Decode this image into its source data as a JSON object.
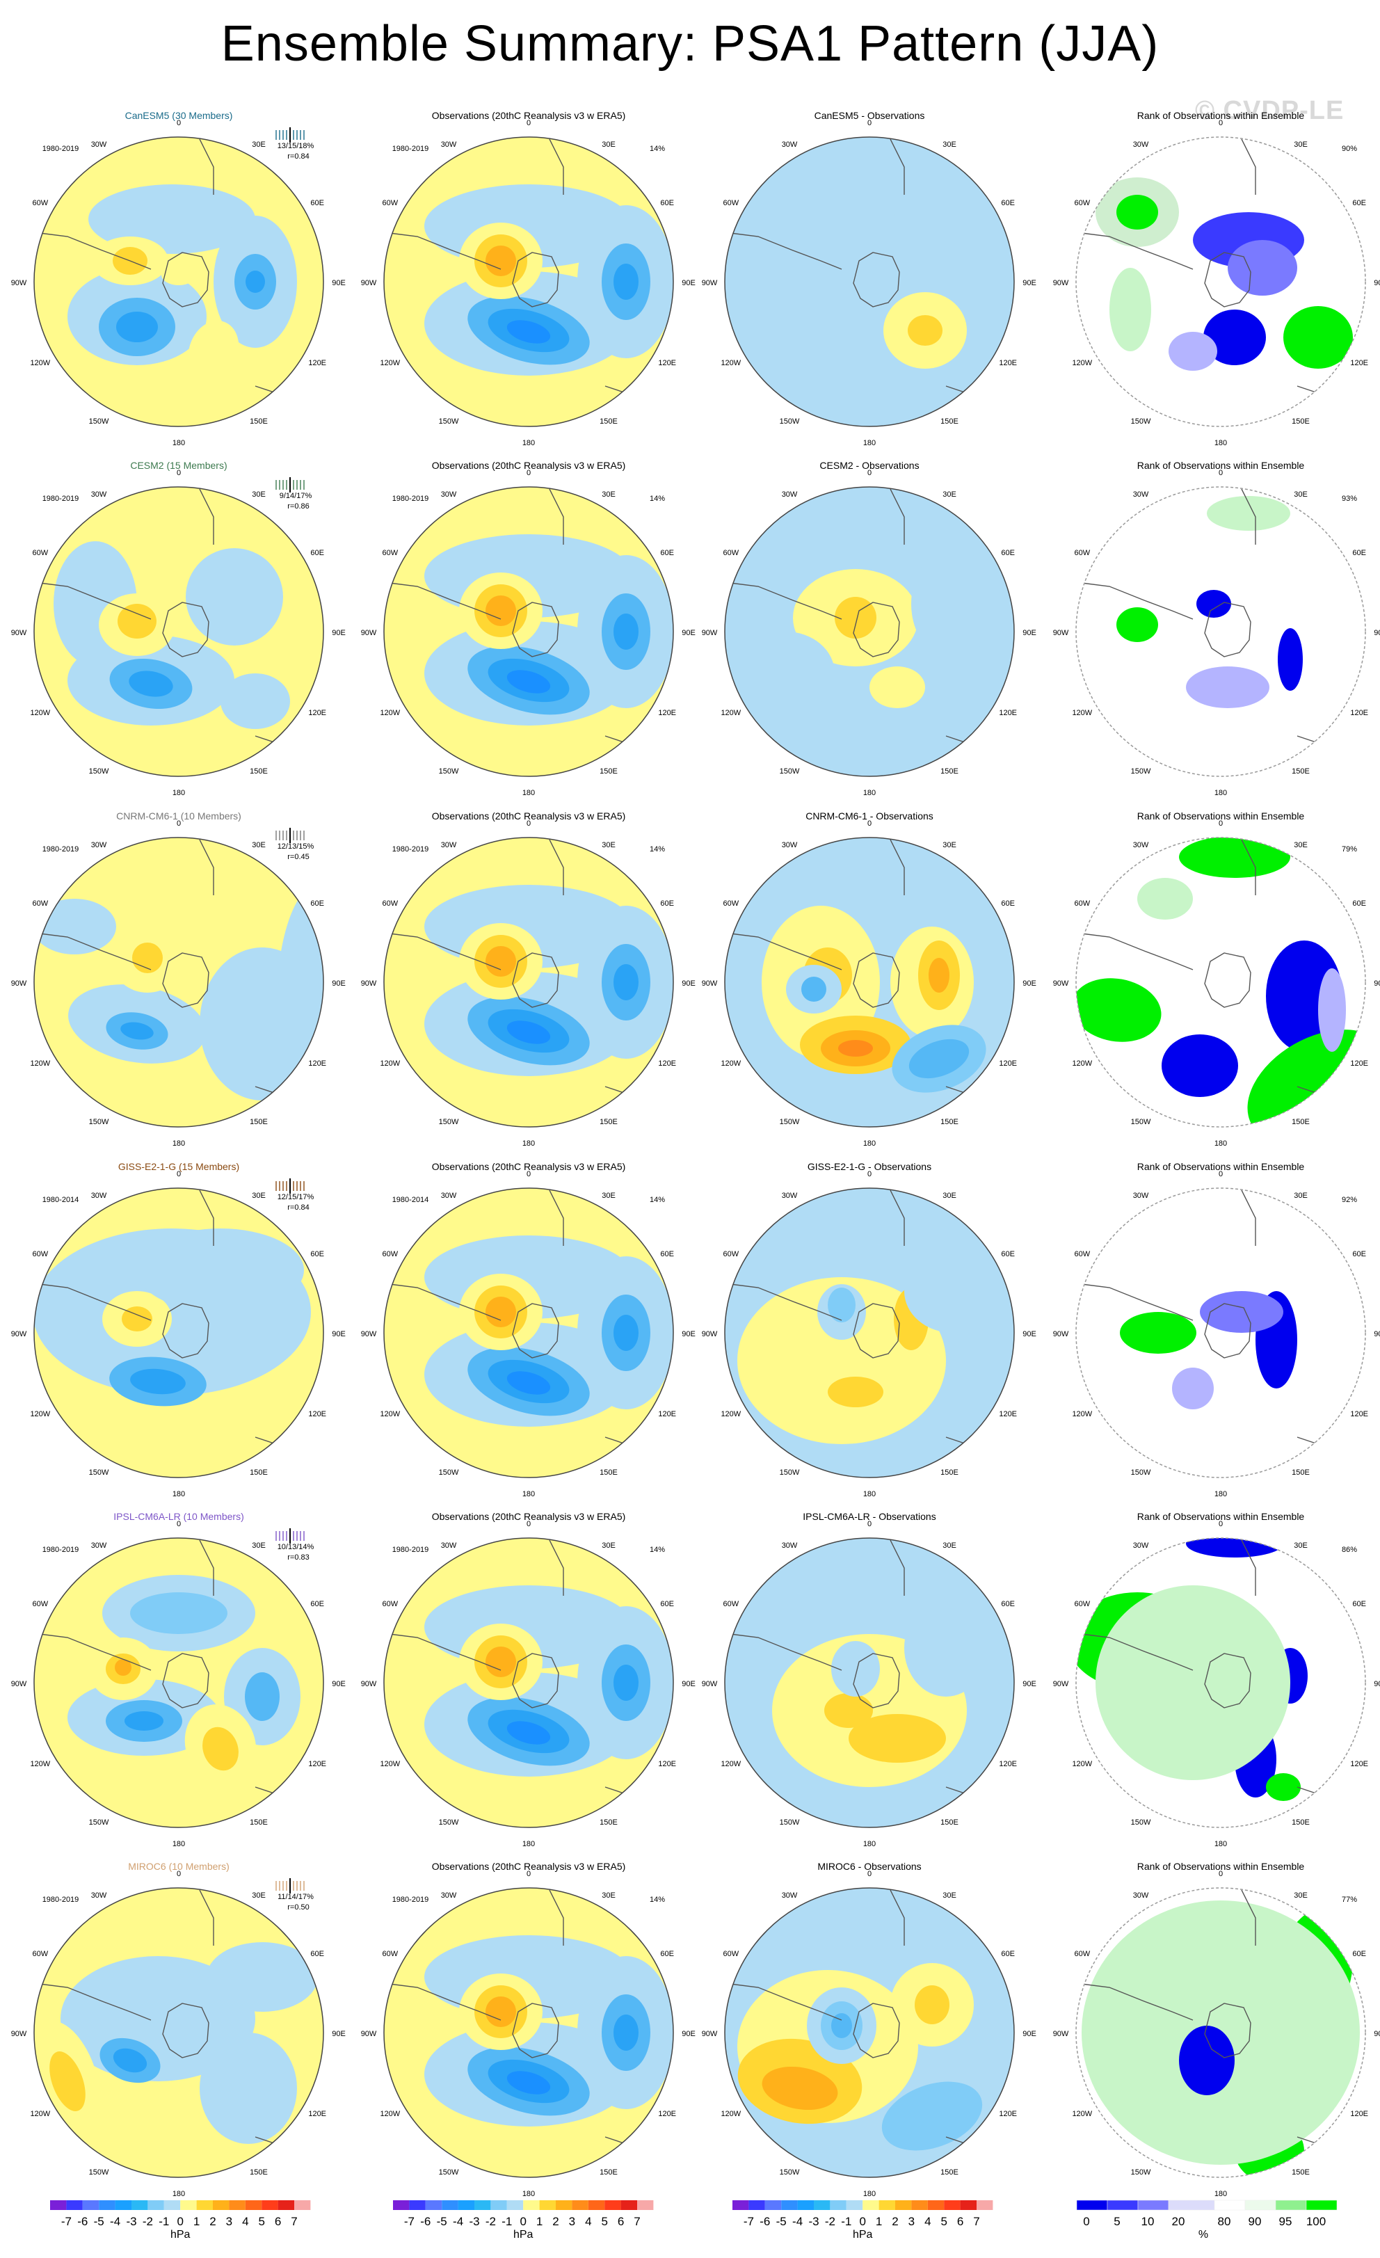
{
  "title": "Ensemble Summary: PSA1 Pattern (JJA)",
  "watermark": "© CVDP-LE",
  "obs_title": "Observations (20thC Reanalysis v3 w ERA5)",
  "diff_suffix": " - Observations",
  "rank_title": "Rank of Observations within Ensemble",
  "obs_pct": "14%",
  "lon_labels": [
    "0",
    "30E",
    "60E",
    "90E",
    "120E",
    "150E",
    "180",
    "150W",
    "120W",
    "90W",
    "60W",
    "30W"
  ],
  "colors": {
    "model_name": [
      "#1a6b8a",
      "#3d7a4f",
      "#777777",
      "#8a4a12",
      "#7d55c7",
      "#d0a070"
    ],
    "neg": [
      "#8a2be2",
      "#3a3aff",
      "#5a78ff",
      "#2f8fff",
      "#1aa0ff",
      "#2ab8f5",
      "#80ccf7",
      "#b0dcf5"
    ],
    "pos": [
      "#fffa8c",
      "#ffd733",
      "#ffb11a",
      "#ff8c1a",
      "#ff6619",
      "#ff3d1a",
      "#e6221a",
      "#f7a8a8"
    ],
    "rank": [
      "#0000ee",
      "#3a3aff",
      "#7a7aff",
      "#b4b4ff",
      "#dcdcfa",
      "#ffffff",
      "#ecfaec",
      "#c8f5c8",
      "#8ff08f",
      "#00f000"
    ]
  },
  "models": [
    {
      "name": "CanESM5",
      "members": "(30 Members)",
      "period": "1980-2019",
      "stats": "13/15/18%",
      "r": "r=0.84",
      "rank_pct": "90%"
    },
    {
      "name": "CESM2",
      "members": "(15 Members)",
      "period": "1980-2019",
      "stats": "9/14/17%",
      "r": "r=0.86",
      "rank_pct": "93%"
    },
    {
      "name": "CNRM-CM6-1",
      "members": "(10 Members)",
      "period": "1980-2019",
      "stats": "12/13/15%",
      "r": "r=0.45",
      "rank_pct": "79%"
    },
    {
      "name": "GISS-E2-1-G",
      "members": "(15 Members)",
      "period": "1980-2014",
      "stats": "12/15/17%",
      "r": "r=0.84",
      "rank_pct": "92%"
    },
    {
      "name": "IPSL-CM6A-LR",
      "members": "(10 Members)",
      "period": "1980-2019",
      "stats": "10/13/14%",
      "r": "r=0.83",
      "rank_pct": "86%"
    },
    {
      "name": "MIROC6",
      "members": "(10 Members)",
      "period": "1980-2019",
      "stats": "11/14/17%",
      "r": "r=0.50",
      "rank_pct": "77%"
    }
  ],
  "obs_periods": [
    "1980-2019",
    "1980-2019",
    "1980-2019",
    "1980-2014",
    "1980-2019",
    "1980-2019"
  ],
  "colorbar_hpa": {
    "labels": [
      "-7",
      "-6",
      "-5",
      "-4",
      "-3",
      "-2",
      "-1",
      "0",
      "1",
      "2",
      "3",
      "4",
      "5",
      "6",
      "7"
    ],
    "unit": "hPa"
  },
  "colorbar_rank": {
    "labels": [
      "0",
      "5",
      "10",
      "20",
      "80",
      "90",
      "95",
      "100"
    ],
    "unit": "%"
  }
}
